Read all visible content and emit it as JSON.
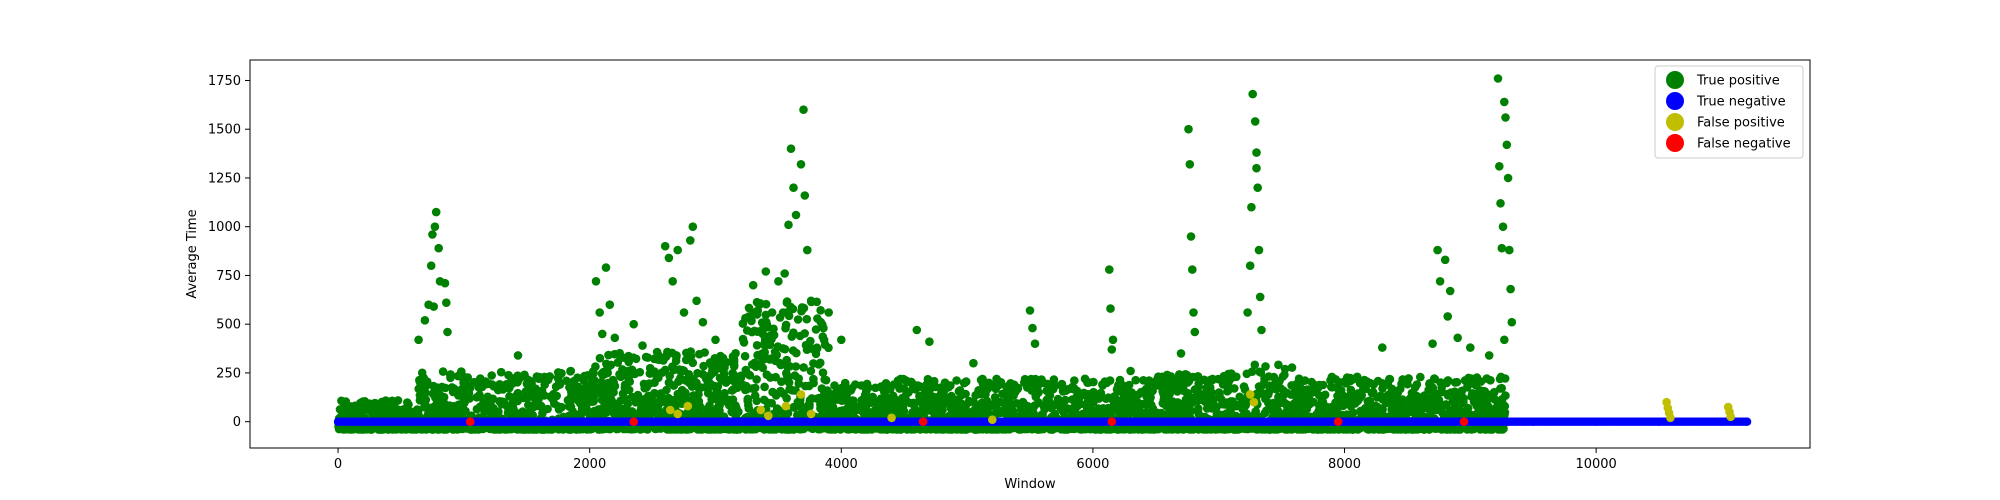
{
  "chart_data": {
    "type": "scatter",
    "title": "",
    "xlabel": "Window",
    "ylabel": "Average Time",
    "xlim": [
      -700,
      11700
    ],
    "ylim": [
      -135,
      1855
    ],
    "x_ticks": [
      0,
      2000,
      4000,
      6000,
      8000,
      10000
    ],
    "x_tick_labels": [
      "0",
      "2000",
      "4000",
      "6000",
      "8000",
      "10000"
    ],
    "y_ticks": [
      0,
      250,
      500,
      750,
      1000,
      1250,
      1500,
      1750
    ],
    "y_tick_labels": [
      "0",
      "250",
      "500",
      "750",
      "1000",
      "1250",
      "1500",
      "1750"
    ],
    "grid": false,
    "legend_position": "top-right",
    "series": [
      {
        "name": "True positive",
        "color": "#008000",
        "bands": [
          {
            "x": [
              0,
              600
            ],
            "y": [
              -40,
              110
            ]
          },
          {
            "x": [
              600,
              2000
            ],
            "y": [
              -40,
              260
            ]
          },
          {
            "x": [
              2000,
              3200
            ],
            "y": [
              -40,
              360
            ]
          },
          {
            "x": [
              3200,
              3900
            ],
            "y": [
              -40,
              620
            ]
          },
          {
            "x": [
              3900,
              4400
            ],
            "y": [
              -40,
              200
            ]
          },
          {
            "x": [
              4400,
              6500
            ],
            "y": [
              -40,
              220
            ]
          },
          {
            "x": [
              6500,
              7200
            ],
            "y": [
              -40,
              250
            ]
          },
          {
            "x": [
              7200,
              7600
            ],
            "y": [
              -40,
              300
            ]
          },
          {
            "x": [
              7600,
              9280
            ],
            "y": [
              -40,
              230
            ]
          }
        ],
        "points": [
          [
            640,
            420
          ],
          [
            690,
            520
          ],
          [
            720,
            600
          ],
          [
            740,
            800
          ],
          [
            750,
            960
          ],
          [
            770,
            1000
          ],
          [
            780,
            1075
          ],
          [
            800,
            890
          ],
          [
            810,
            720
          ],
          [
            760,
            590
          ],
          [
            850,
            710
          ],
          [
            860,
            610
          ],
          [
            870,
            460
          ],
          [
            1430,
            340
          ],
          [
            1850,
            260
          ],
          [
            2050,
            720
          ],
          [
            2080,
            560
          ],
          [
            2100,
            450
          ],
          [
            2130,
            790
          ],
          [
            2160,
            600
          ],
          [
            2200,
            430
          ],
          [
            2350,
            500
          ],
          [
            2420,
            390
          ],
          [
            2600,
            900
          ],
          [
            2630,
            840
          ],
          [
            2660,
            720
          ],
          [
            2700,
            880
          ],
          [
            2750,
            560
          ],
          [
            2800,
            930
          ],
          [
            2820,
            1000
          ],
          [
            2850,
            620
          ],
          [
            2900,
            510
          ],
          [
            3000,
            420
          ],
          [
            3300,
            700
          ],
          [
            3350,
            600
          ],
          [
            3400,
            770
          ],
          [
            3450,
            560
          ],
          [
            3500,
            720
          ],
          [
            3550,
            760
          ],
          [
            3580,
            1010
          ],
          [
            3600,
            1400
          ],
          [
            3620,
            1200
          ],
          [
            3640,
            1060
          ],
          [
            3680,
            1320
          ],
          [
            3700,
            1600
          ],
          [
            3710,
            1160
          ],
          [
            3730,
            880
          ],
          [
            3760,
            620
          ],
          [
            3900,
            560
          ],
          [
            4000,
            420
          ],
          [
            4600,
            470
          ],
          [
            4700,
            410
          ],
          [
            5050,
            300
          ],
          [
            5500,
            570
          ],
          [
            5520,
            480
          ],
          [
            5540,
            400
          ],
          [
            6130,
            780
          ],
          [
            6140,
            580
          ],
          [
            6160,
            420
          ],
          [
            6150,
            370
          ],
          [
            6300,
            260
          ],
          [
            6700,
            350
          ],
          [
            6760,
            1500
          ],
          [
            6770,
            1320
          ],
          [
            6780,
            950
          ],
          [
            6790,
            780
          ],
          [
            6800,
            560
          ],
          [
            6810,
            460
          ],
          [
            7230,
            560
          ],
          [
            7250,
            800
          ],
          [
            7260,
            1100
          ],
          [
            7270,
            1680
          ],
          [
            7290,
            1540
          ],
          [
            7300,
            1380
          ],
          [
            7310,
            1200
          ],
          [
            7320,
            880
          ],
          [
            7330,
            640
          ],
          [
            7340,
            470
          ],
          [
            7300,
            1300
          ],
          [
            8300,
            380
          ],
          [
            8700,
            400
          ],
          [
            8740,
            880
          ],
          [
            8760,
            720
          ],
          [
            8800,
            830
          ],
          [
            8820,
            540
          ],
          [
            8840,
            670
          ],
          [
            8900,
            430
          ],
          [
            9000,
            380
          ],
          [
            9150,
            340
          ],
          [
            9220,
            1760
          ],
          [
            9230,
            1310
          ],
          [
            9240,
            1120
          ],
          [
            9250,
            890
          ],
          [
            9260,
            1000
          ],
          [
            9270,
            1640
          ],
          [
            9280,
            1560
          ],
          [
            9290,
            1420
          ],
          [
            9300,
            1250
          ],
          [
            9310,
            880
          ],
          [
            9320,
            680
          ],
          [
            9330,
            510
          ],
          [
            9270,
            420
          ]
        ]
      },
      {
        "name": "True negative",
        "color": "#0000ff",
        "points": [
          [
            0,
            0
          ],
          [
            200,
            0
          ],
          [
            500,
            0
          ],
          [
            1000,
            0
          ],
          [
            1500,
            0
          ],
          [
            2000,
            0
          ],
          [
            2500,
            0
          ],
          [
            3000,
            0
          ],
          [
            3500,
            0
          ],
          [
            4000,
            0
          ],
          [
            4500,
            0
          ],
          [
            5000,
            0
          ],
          [
            5500,
            0
          ],
          [
            6000,
            0
          ],
          [
            6500,
            0
          ],
          [
            7000,
            0
          ],
          [
            7500,
            0
          ],
          [
            8000,
            0
          ],
          [
            8500,
            0
          ],
          [
            9000,
            0
          ],
          [
            9300,
            0
          ],
          [
            9500,
            0
          ],
          [
            10000,
            0
          ],
          [
            10500,
            0
          ],
          [
            11000,
            0
          ],
          [
            11200,
            0
          ]
        ]
      },
      {
        "name": "False positive",
        "color": "#bfbf00",
        "points": [
          [
            2640,
            60
          ],
          [
            2700,
            40
          ],
          [
            2780,
            80
          ],
          [
            3360,
            60
          ],
          [
            3420,
            30
          ],
          [
            3560,
            80
          ],
          [
            3680,
            140
          ],
          [
            3760,
            40
          ],
          [
            7250,
            140
          ],
          [
            7280,
            100
          ],
          [
            4400,
            20
          ],
          [
            5200,
            10
          ],
          [
            10560,
            100
          ],
          [
            10570,
            70
          ],
          [
            10580,
            45
          ],
          [
            10590,
            20
          ],
          [
            11050,
            75
          ],
          [
            11060,
            50
          ],
          [
            11070,
            25
          ]
        ]
      },
      {
        "name": "False negative",
        "color": "#ff0000",
        "points": [
          [
            1050,
            0
          ],
          [
            2350,
            0
          ],
          [
            4650,
            0
          ],
          [
            6150,
            0
          ],
          [
            7950,
            0
          ],
          [
            8950,
            0
          ]
        ]
      }
    ]
  }
}
